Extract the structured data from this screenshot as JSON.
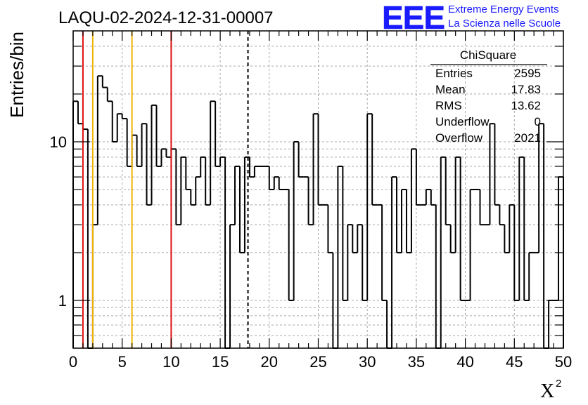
{
  "header": {
    "title": "LAQU-02-2024-12-31-00007",
    "logo_text": "EEE",
    "project_line1": "Extreme Energy Events",
    "project_line2": "La Scienza nelle Scuole"
  },
  "stats_box": {
    "title": "ChiSquare",
    "rows": [
      {
        "label": "Entries",
        "value": "2595"
      },
      {
        "label": "Mean",
        "value": "17.83"
      },
      {
        "label": "RMS",
        "value": "13.62"
      },
      {
        "label": "Underflow",
        "value": "0"
      },
      {
        "label": "Overflow",
        "value": "2021"
      }
    ]
  },
  "colors": {
    "line": "#000000",
    "grid": "#a8a8a8",
    "red_marker": "#dd1111",
    "orange_marker": "#f0b400",
    "logo": "#1a1aff"
  },
  "chart_data": {
    "type": "histogram",
    "title": "LAQU-02-2024-12-31-00007",
    "xlabel": "X",
    "xlabel_superscript": "2",
    "ylabel": "Entries/bin",
    "y_scale": "log",
    "xlim": [
      0,
      50
    ],
    "ylim": [
      0.5,
      50
    ],
    "grid": true,
    "bin_width": 0.5,
    "x_ticks": [
      "0",
      "5",
      "10",
      "15",
      "20",
      "25",
      "30",
      "35",
      "40",
      "45",
      "50"
    ],
    "y_ticks": [
      {
        "value": 1,
        "label": "1"
      },
      {
        "value": 10,
        "label": "10"
      }
    ],
    "values": [
      18,
      13,
      12,
      0,
      3,
      26,
      22,
      18,
      10,
      15,
      14,
      7,
      11,
      7,
      13,
      4,
      17,
      7,
      9,
      8,
      9,
      3,
      8,
      5,
      4,
      6,
      8,
      4,
      18,
      7,
      8,
      0,
      3,
      7,
      2,
      8,
      6,
      7,
      7,
      7,
      5,
      6,
      5,
      5,
      1,
      10,
      6,
      6,
      3,
      15,
      4,
      4,
      2,
      0,
      7,
      1,
      3,
      2,
      3,
      1,
      15,
      4,
      4,
      1,
      0,
      6,
      2,
      5,
      2,
      9,
      4,
      4,
      5,
      4,
      0,
      8,
      3,
      2,
      8,
      1,
      1,
      5,
      5,
      3,
      3,
      13,
      4,
      3,
      2,
      4,
      1,
      8,
      1,
      2,
      2,
      13,
      0,
      1,
      1,
      6
    ],
    "vertical_markers": [
      {
        "x": 1,
        "color": "red",
        "style": "solid"
      },
      {
        "x": 2,
        "color": "orange",
        "style": "solid"
      },
      {
        "x": 6,
        "color": "orange",
        "style": "solid"
      },
      {
        "x": 10,
        "color": "red",
        "style": "solid"
      },
      {
        "x": 17.83,
        "color": "black",
        "style": "dashed"
      }
    ]
  }
}
